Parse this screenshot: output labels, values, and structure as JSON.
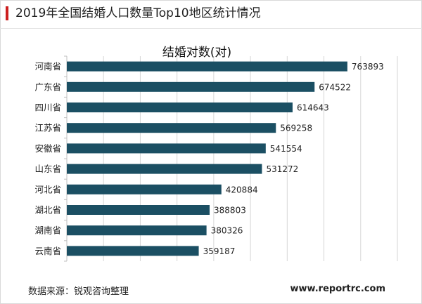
{
  "header": {
    "title": "2019年全国结婚人口数量Top10地区统计情况",
    "accent_color": "#cc1f1f"
  },
  "footer": {
    "source": "数据来源：锐观咨询整理",
    "url": "www.reportrc.com"
  },
  "chart_data": {
    "type": "bar",
    "orientation": "horizontal",
    "title": "结婚对数(对)",
    "categories": [
      "河南省",
      "广东省",
      "四川省",
      "江苏省",
      "安徽省",
      "山东省",
      "河北省",
      "湖北省",
      "湖南省",
      "云南省"
    ],
    "series": [
      {
        "values": [
          763893,
          674522,
          614643,
          569258,
          541554,
          531272,
          420884,
          388803,
          380326,
          359187
        ]
      }
    ],
    "xlim": [
      0,
      900000
    ],
    "grid": true,
    "data_labels": true,
    "bar_color": "#1b4f63"
  }
}
